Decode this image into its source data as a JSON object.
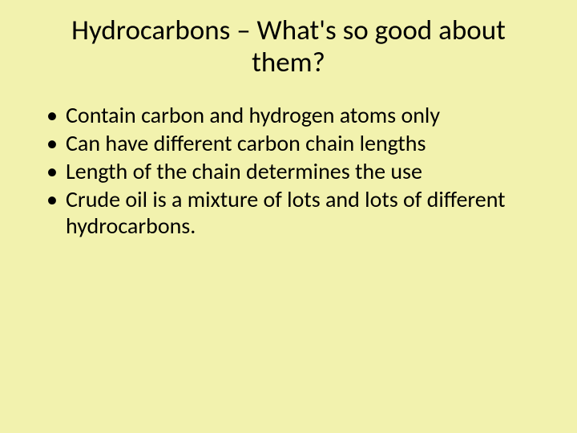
{
  "slide": {
    "background_color": "#f2f2ae",
    "text_color": "#000000",
    "font_family": "Calibri",
    "title": "Hydrocarbons – What's so good about them?",
    "title_fontsize": 35,
    "title_align": "center",
    "bullet_fontsize": 28,
    "bullets": [
      "Contain carbon and hydrogen atoms only",
      "Can have different carbon chain lengths",
      "Length of the chain determines the use",
      "Crude oil is a mixture of lots and lots of different hydrocarbons."
    ]
  }
}
